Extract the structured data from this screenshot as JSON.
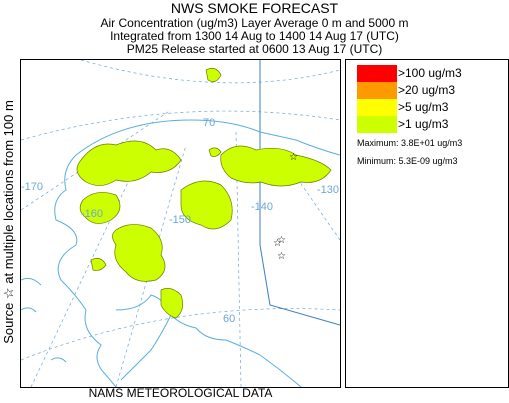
{
  "header": {
    "title": "NWS SMOKE FORECAST",
    "line2": "Air Concentration (ug/m3) Layer Average    0 m and  5000 m",
    "line3": "Integrated from 1300 14 Aug to 1400 14 Aug 17 (UTC)",
    "line4": "PM25 Release started at 0600 13 Aug 17 (UTC)"
  },
  "side_label": "Source ☆ at multiple locations from 100 m",
  "footer": "NAMS METEOROLOGICAL DATA",
  "map": {
    "region": "Alaska",
    "graticule_labels": {
      "lat_70": "70",
      "lat_60": "60",
      "lon_170": "-170",
      "lon_160": "-160",
      "lon_150": "-150",
      "lon_140": "-140",
      "lon_130": "-130"
    },
    "source_marker_symbol": "☆",
    "colors": {
      "coastline": "#5aaee0",
      "graticule": "#6aa8d8",
      "smoke_fill": "#ccff00",
      "smoke_edge": "#6b7a00",
      "border_line": "#3a7fc0"
    }
  },
  "legend": {
    "items": [
      {
        "label": ">100 ug/m3",
        "color": "#ff0000"
      },
      {
        "label": ">20 ug/m3",
        "color": "#ff9900"
      },
      {
        "label": ">5 ug/m3",
        "color": "#ffff00"
      },
      {
        "label": ">1 ug/m3",
        "color": "#ccff00"
      }
    ],
    "maximum": "Maximum: 3.8E+01 ug/m3",
    "minimum": "Minimum: 5.3E-09 ug/m3"
  }
}
